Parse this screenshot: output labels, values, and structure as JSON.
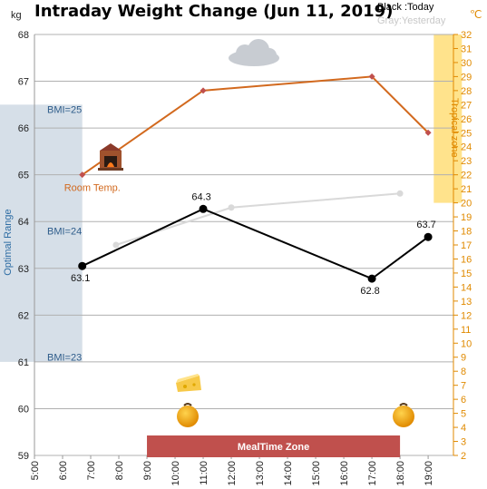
{
  "chart_data": {
    "type": "line",
    "title": "Intraday Weight Change (Jun 11, 2019)",
    "legend": {
      "today": "Black :Today",
      "yesterday": "Gray:Yesterday"
    },
    "y_unit": "kg",
    "y2_unit": "℃",
    "ylim": [
      59,
      68
    ],
    "y2lim": [
      2,
      32
    ],
    "x_ticks": [
      "5:00",
      "6:00",
      "7:00",
      "8:00",
      "9:00",
      "10:00",
      "11:00",
      "12:00",
      "13:00",
      "14:00",
      "15:00",
      "16:00",
      "17:00",
      "18:00",
      "19:00"
    ],
    "y_ticks": [
      59,
      60,
      61,
      62,
      63,
      64,
      65,
      66,
      67,
      68
    ],
    "y2_ticks": [
      2,
      3,
      4,
      5,
      6,
      7,
      8,
      9,
      10,
      11,
      12,
      13,
      14,
      15,
      16,
      17,
      18,
      19,
      20,
      21,
      22,
      23,
      24,
      25,
      26,
      27,
      28,
      29,
      30,
      31,
      32
    ],
    "series": [
      {
        "name": "Today",
        "color": "#000000",
        "points": [
          {
            "x": 6.7,
            "y": 63.05,
            "label": "63.1"
          },
          {
            "x": 11.0,
            "y": 64.27,
            "label": "64.3"
          },
          {
            "x": 17.0,
            "y": 62.78,
            "label": "62.8"
          },
          {
            "x": 19.0,
            "y": 63.67,
            "label": "63.7"
          }
        ]
      },
      {
        "name": "Yesterday",
        "color": "#d9d9d9",
        "points": [
          {
            "x": 7.9,
            "y": 63.5
          },
          {
            "x": 12.0,
            "y": 64.3
          },
          {
            "x": 18.0,
            "y": 64.6
          }
        ]
      },
      {
        "name": "Room Temp.",
        "color": "#d2691e",
        "axis": "y2",
        "points": [
          {
            "x": 6.7,
            "y": 22.0
          },
          {
            "x": 11.0,
            "y": 28.0
          },
          {
            "x": 17.0,
            "y": 29.0
          },
          {
            "x": 19.0,
            "y": 25.0
          }
        ]
      }
    ],
    "optimal_range": {
      "label": "Optimal Range",
      "y_from": 61,
      "y_to": 66.5,
      "x_from": 5.0,
      "x_to": 6.7
    },
    "bmi_labels": [
      {
        "text": "BMI=25",
        "y": 66.4
      },
      {
        "text": "BMI=24",
        "y": 63.8
      },
      {
        "text": "BMI=23",
        "y": 61.1
      }
    ],
    "tropical_zone": {
      "label": "Tropical zone",
      "y2_from": 20,
      "y2_to": 32,
      "x_from": 19.2,
      "x_to": 20.2
    },
    "meal_zone": {
      "label": "MealTime Zone",
      "x_from": 9.0,
      "x_to": 18.0
    },
    "room_temp_label": "Room Temp."
  }
}
